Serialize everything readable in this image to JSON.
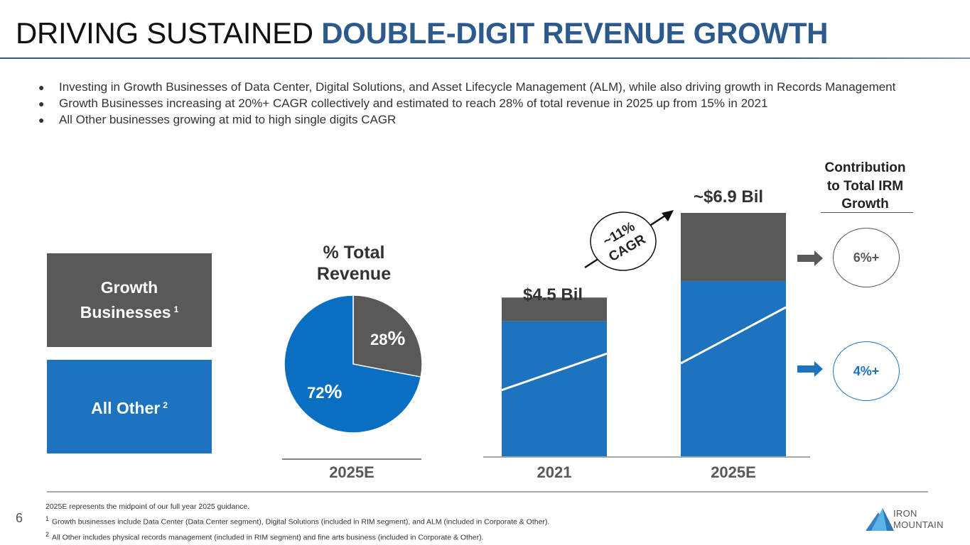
{
  "header": {
    "title_plain": "DRIVING SUSTAINED ",
    "title_accent": "DOUBLE-DIGIT REVENUE GROWTH"
  },
  "bullets": [
    "Investing in Growth Businesses of Data Center, Digital Solutions, and Asset Lifecycle Management (ALM), while also driving growth in Records Management",
    "Growth Businesses increasing at 20%+ CAGR collectively and estimated to reach 28% of total revenue in 2025 up from 15% in 2021",
    "All Other businesses growing at mid to high single digits CAGR"
  ],
  "bullet_glyph": "●",
  "legend": {
    "growth": {
      "label_line1": "Growth",
      "label_line2": "Businesses",
      "footnote_mark": "1",
      "color": "#595959"
    },
    "other": {
      "label": "All Other",
      "footnote_mark": "2",
      "color": "#1e73be"
    }
  },
  "contribution": {
    "title_line1": "Contribution",
    "title_line2": "to Total IRM",
    "title_line3": "Growth",
    "growth_value": "6%+",
    "other_value": "4%+",
    "arrow_icon": "right-arrow"
  },
  "cagr_badge": {
    "line1": "~11%",
    "line2": "CAGR"
  },
  "colors": {
    "accent": "#2c5a8c",
    "growth": "#595959",
    "other": "#1e73be",
    "pie_other": "#0a6fc2"
  },
  "chart_data": [
    {
      "type": "pie",
      "title": "% Total Revenue",
      "title_line1": "% Total",
      "title_line2": "Revenue",
      "xlabel": "2025E",
      "slices": [
        {
          "name": "Growth Businesses",
          "value": 28,
          "label_num": "28",
          "label_pct": "%"
        },
        {
          "name": "All Other",
          "value": 72,
          "label_num": "72",
          "label_pct": "%"
        }
      ]
    },
    {
      "type": "bar",
      "stacked": true,
      "categories": [
        "2021",
        "2025E"
      ],
      "totals": [
        4.5,
        6.9
      ],
      "total_labels": [
        "$4.5 Bil",
        "~$6.9 Bil"
      ],
      "series": [
        {
          "name": "All Other",
          "values": [
            3.83,
            4.97
          ]
        },
        {
          "name": "Growth Businesses",
          "values": [
            0.67,
            1.93
          ]
        }
      ],
      "units": "Billions USD",
      "annotation": "~11% CAGR"
    }
  ],
  "footer": {
    "page_number": "6",
    "note0": "2025E represents the midpoint of our full year 2025 guidance.",
    "note1_mark": "1",
    "note1": "Growth businesses include Data Center (Data Center segment), Digital Solutions (included in RIM segment), and ALM (included in Corporate & Other).",
    "note2_mark": "2",
    "note2": "All Other includes physical records management (included in RIM segment) and fine arts business (included in Corporate & Other)."
  },
  "logo": {
    "line1": "IRON",
    "line2": "MOUNTAIN"
  }
}
